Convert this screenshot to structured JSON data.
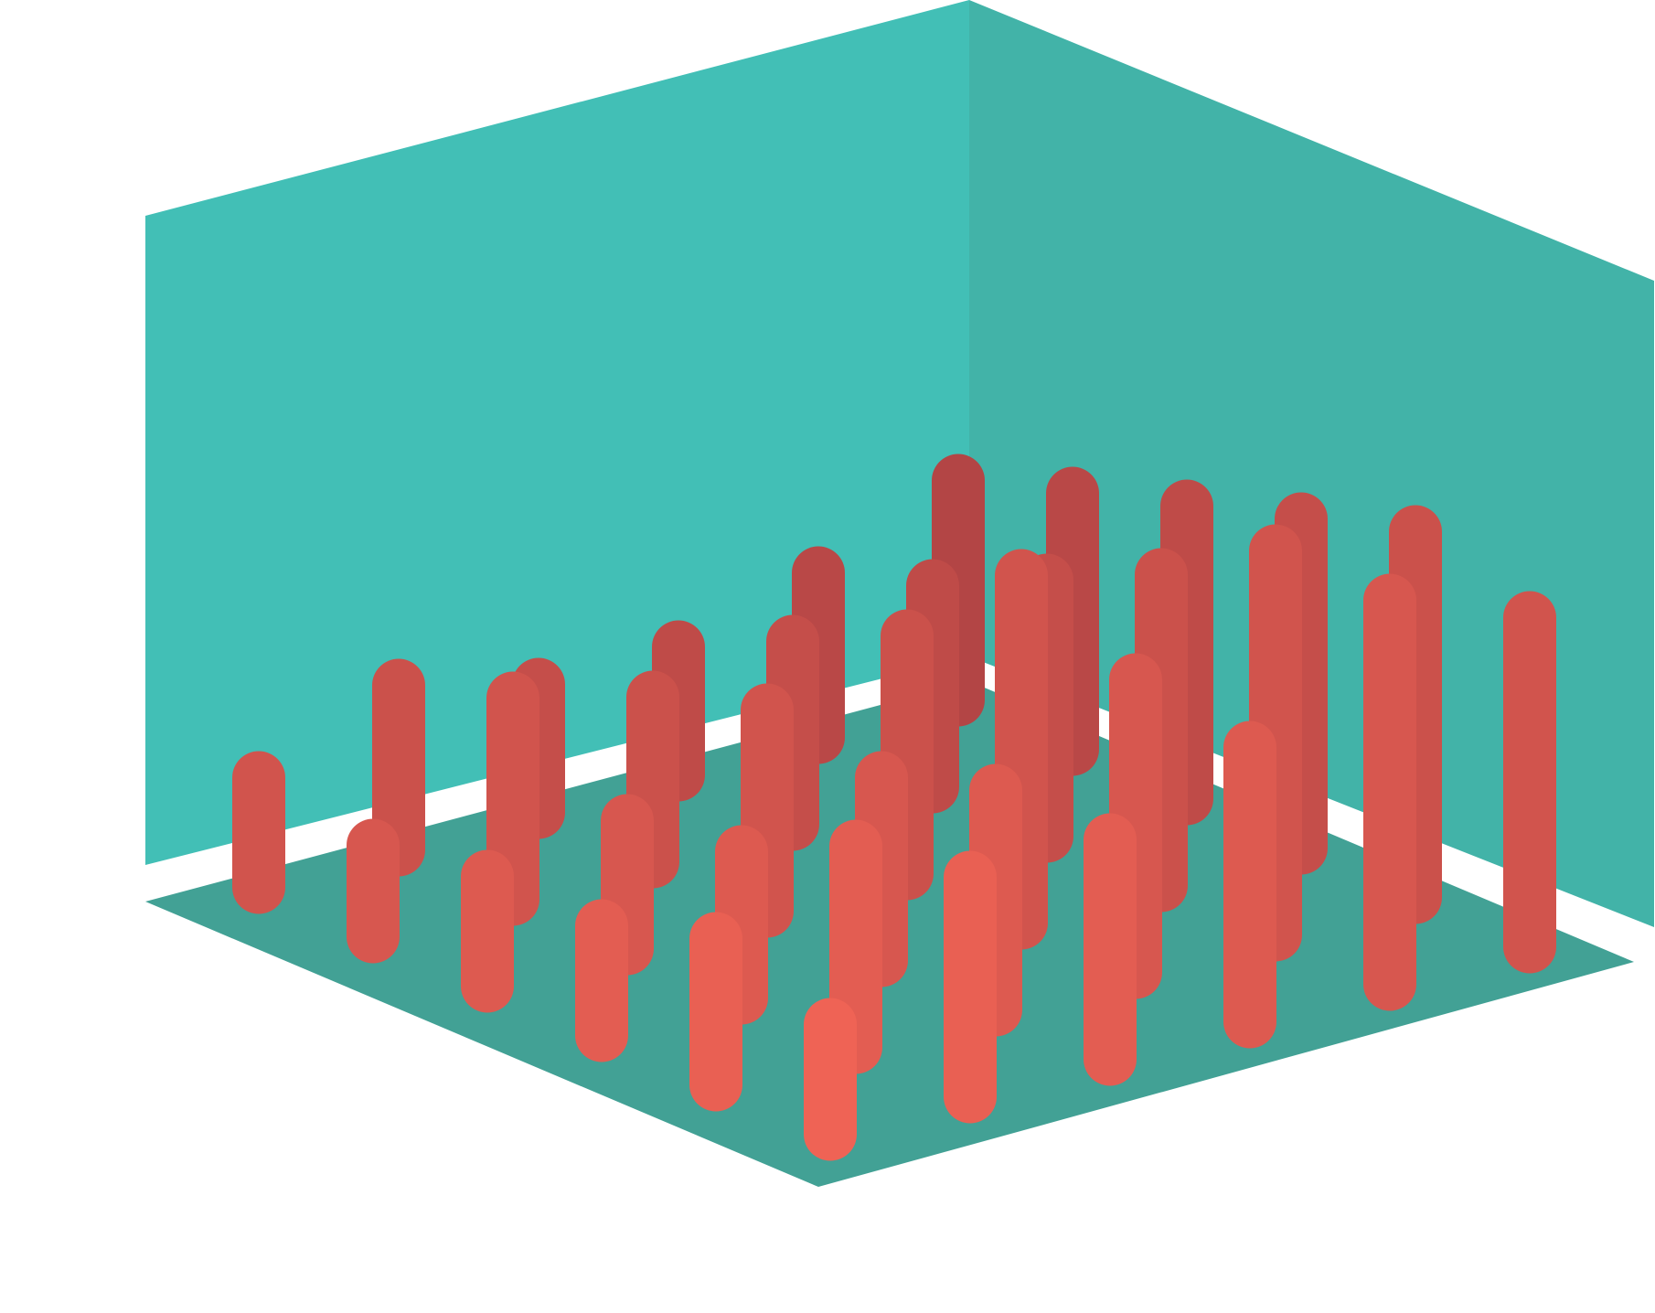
{
  "chart_data": {
    "type": "bar",
    "subtype": "3d-column-grid",
    "title": "",
    "xlabel": "",
    "ylabel": "",
    "axes_visible": false,
    "grid": false,
    "legend": "none",
    "grid_size": [
      6,
      6
    ],
    "value_range": [
      0,
      50
    ],
    "colors": {
      "back_wall_left": "#42bfb6",
      "back_wall_right": "#42b3a8",
      "floor": "#42a195",
      "bar_back": "#b34545",
      "bar_front": "#ef6355"
    },
    "series": [
      {
        "name": "",
        "values": [
          [
            24,
            28,
            32,
            36,
            40,
            36
          ],
          [
            18,
            22,
            28,
            34,
            42,
            42
          ],
          [
            14,
            20,
            26,
            38,
            32,
            30
          ],
          [
            14,
            18,
            22,
            20,
            24,
            24
          ],
          [
            18,
            22,
            14,
            16,
            22,
            24
          ],
          [
            12,
            10,
            12,
            12,
            16,
            12
          ]
        ]
      }
    ]
  }
}
